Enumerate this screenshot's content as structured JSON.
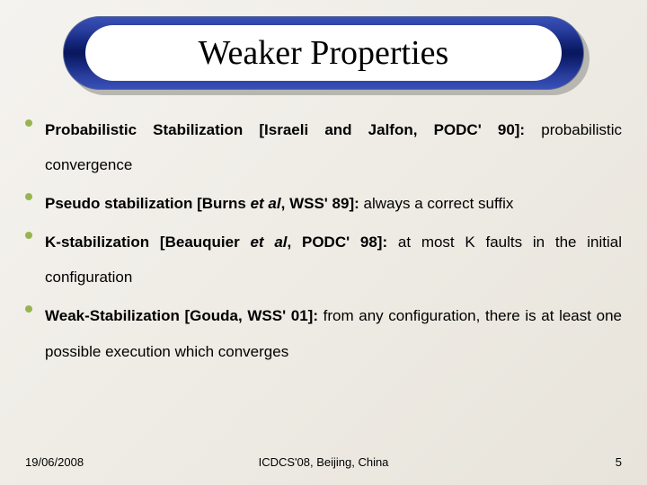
{
  "title": "Weaker Properties",
  "bullets": [
    {
      "bold_lead": "Probabilistic Stabilization [Israeli and Jalfon, PODC' 90]:",
      "rest": " probabilistic convergence",
      "italic": ""
    },
    {
      "bold_lead": "Pseudo stabilization [Burns ",
      "italic": "et al",
      "bold_tail": ", WSS' 89]:",
      "rest": " always a correct suffix"
    },
    {
      "bold_lead": "K-stabilization [Beauquier ",
      "italic": "et al",
      "bold_tail": ", PODC' 98]:",
      "rest": " at most K faults in the initial configuration"
    },
    {
      "bold_lead": "Weak-Stabilization [Gouda, WSS' 01]:",
      "italic": "",
      "bold_tail": "",
      "rest": " from any configuration, there is at least one possible execution which converges"
    }
  ],
  "footer": {
    "date": "19/06/2008",
    "venue": "ICDCS'08, Beijing, China",
    "page": "5"
  },
  "colors": {
    "bullet": "#97b54f",
    "bg_light": "#f5f3ef",
    "bg_dark": "#e8e4db"
  }
}
